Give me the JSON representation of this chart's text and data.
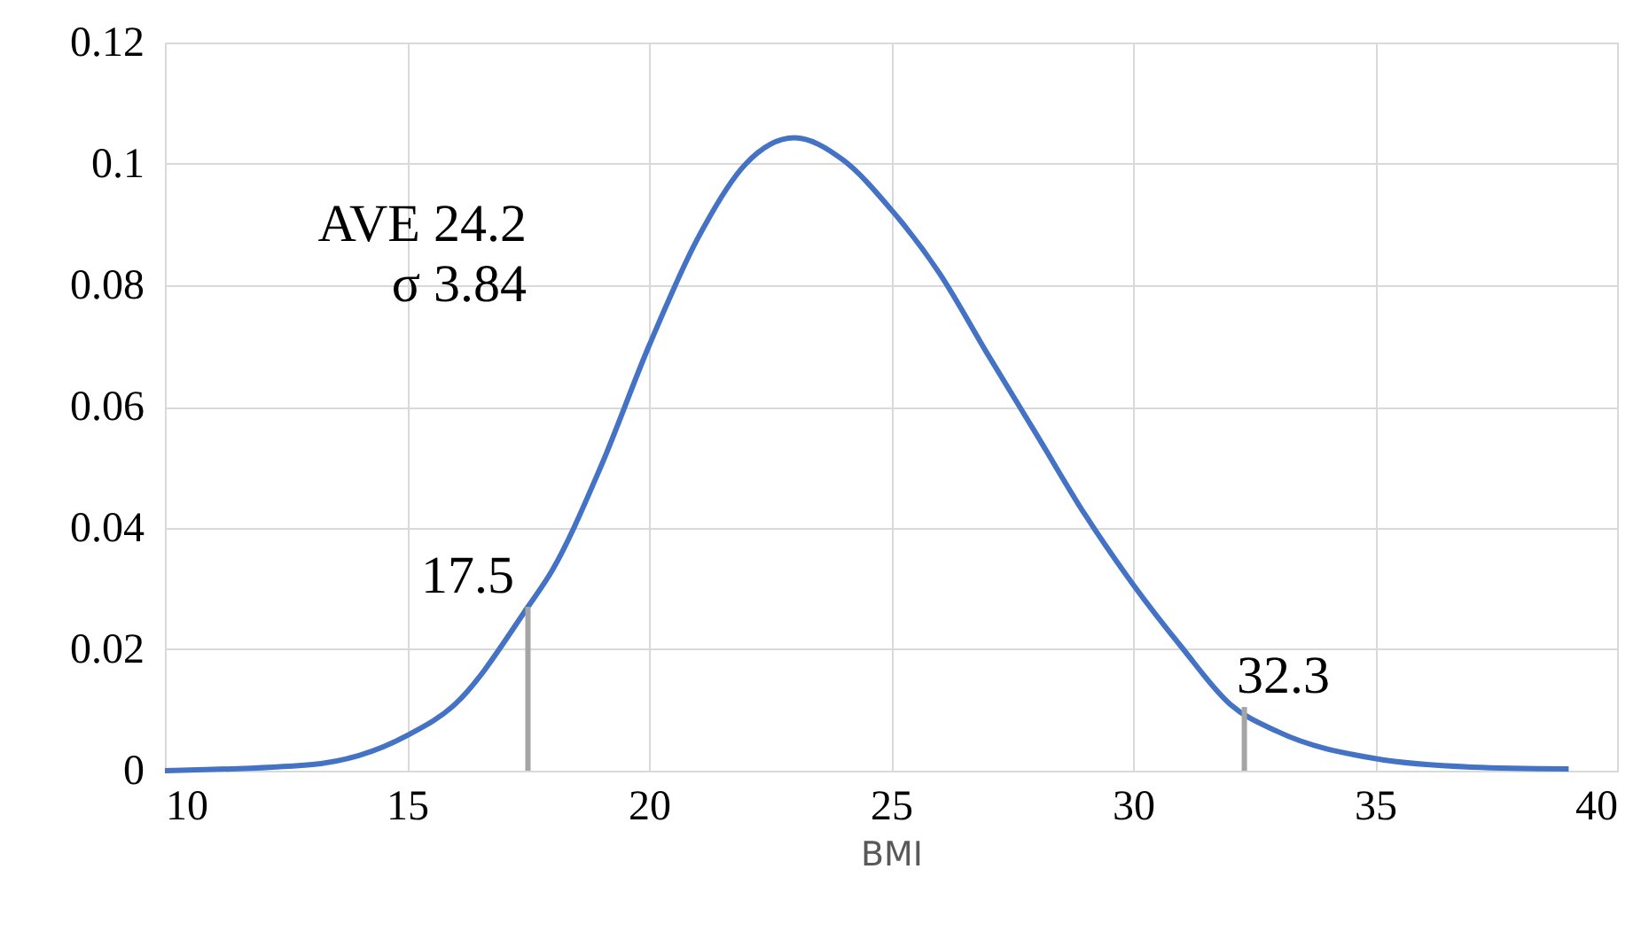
{
  "chart_data": {
    "type": "line",
    "xlabel": "BMI",
    "series": [
      {
        "color": "#4472c4",
        "x": [
          10,
          13,
          15,
          16,
          17.5,
          18,
          19,
          20,
          21,
          22,
          23,
          24,
          25,
          26,
          27,
          28,
          29,
          30,
          31,
          32,
          33,
          35,
          37,
          39
        ],
        "values": [
          0.0,
          0.001,
          0.0058,
          0.011,
          0.027,
          0.033,
          0.05,
          0.07,
          0.0876,
          0.1,
          0.1043,
          0.1007,
          0.0925,
          0.082,
          0.0686,
          0.0555,
          0.0423,
          0.0307,
          0.0204,
          0.011,
          0.0064,
          0.002,
          0.0006,
          0.0003
        ]
      },
      {
        "color": "#a5a5a5",
        "x": [
          17.5,
          17.5
        ],
        "values": [
          0,
          0.027
        ]
      },
      {
        "color": "#a5a5a5",
        "x": [
          32.3,
          32.3
        ],
        "values": [
          0,
          0.0105
        ]
      }
    ],
    "annotations": [
      "AVE 24.2",
      "σ   3.84",
      {
        "text": "17.5",
        "x": 17.5,
        "y": 0.027
      },
      {
        "text": "32.3",
        "x": 32.3,
        "y": 0.0105
      }
    ],
    "xlim": [
      10,
      40
    ],
    "xticks": [
      10,
      15,
      20,
      25,
      30,
      35,
      40
    ],
    "ylim": [
      0,
      0.12
    ],
    "yticks": [
      0,
      0.02,
      0.04,
      0.06,
      0.08,
      0.1,
      0.12
    ],
    "grid": true,
    "marker": "none",
    "line_style": "solid"
  }
}
